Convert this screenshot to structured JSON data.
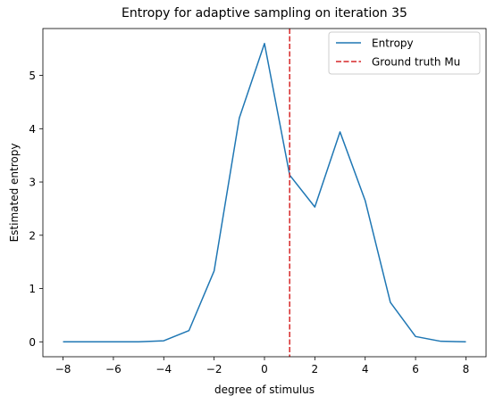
{
  "chart_data": {
    "type": "line",
    "title": "Entropy for adaptive sampling on iteration 35",
    "xlabel": "degree of stimulus",
    "ylabel": "Estimated entropy",
    "xlim": [
      -8.8,
      8.8
    ],
    "ylim": [
      -0.28,
      5.88
    ],
    "xticks": [
      -8,
      -6,
      -4,
      -2,
      0,
      2,
      4,
      6,
      8
    ],
    "xtick_labels": [
      "−8",
      "−6",
      "−4",
      "−2",
      "0",
      "2",
      "4",
      "6",
      "8"
    ],
    "yticks": [
      0,
      1,
      2,
      3,
      4,
      5
    ],
    "ytick_labels": [
      "0",
      "1",
      "2",
      "3",
      "4",
      "5"
    ],
    "grid": false,
    "legend_position": "upper right",
    "series": [
      {
        "name": "Entropy",
        "color": "#1f77b4",
        "style": "solid",
        "x": [
          -8,
          -7,
          -6,
          -5,
          -4,
          -3,
          -2,
          -1,
          0,
          1,
          2,
          3,
          4,
          5,
          6,
          7,
          8
        ],
        "y": [
          0.0,
          0.0,
          0.0,
          0.0,
          0.02,
          0.21,
          1.33,
          4.2,
          5.6,
          3.13,
          2.53,
          3.94,
          2.65,
          0.74,
          0.1,
          0.01,
          0.0
        ]
      }
    ],
    "reference_lines": [
      {
        "name": "Ground truth Mu",
        "orientation": "vertical",
        "x": 1,
        "color": "#d62728",
        "style": "dashed"
      }
    ]
  }
}
